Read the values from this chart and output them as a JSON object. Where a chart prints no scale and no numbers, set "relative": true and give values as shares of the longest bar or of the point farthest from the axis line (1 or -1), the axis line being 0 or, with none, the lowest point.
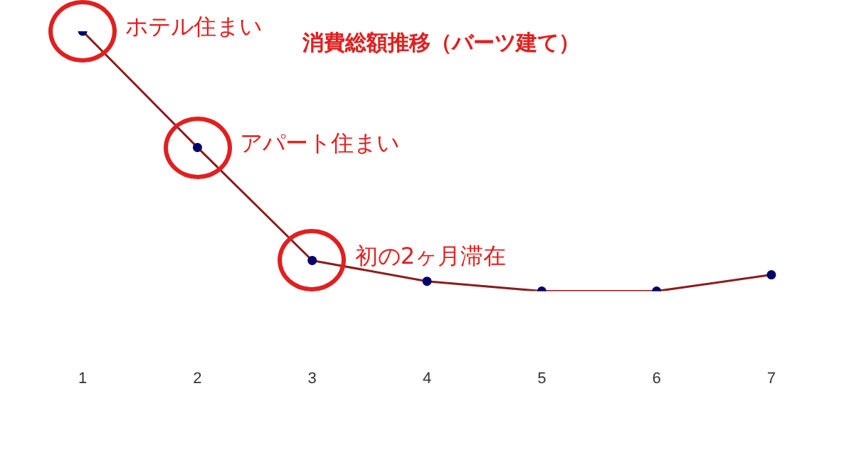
{
  "chart_data": {
    "type": "line",
    "title": "消費総額推移（バーツ建て）",
    "relative": true,
    "categories": [
      "1",
      "2",
      "3",
      "4",
      "5",
      "6",
      "7"
    ],
    "series": [
      {
        "color": "#8b1c1c",
        "colors": [
          "#00006b",
          "#00006b",
          "#00006b",
          "#00006b",
          "#00006b",
          "#00006b",
          "#00006b"
        ],
        "values": [
          1,
          0.553,
          0.118,
          0.038,
          0,
          0,
          0.063
        ]
      }
    ],
    "marker": "circle",
    "grid": false,
    "legend": false,
    "annotations": [
      {
        "text": "ホテル住まい",
        "x": "1",
        "y": 1
      },
      {
        "text": "アパート住まい",
        "x": "2",
        "y": 0.553
      },
      {
        "text": "初の2ヶ月滞在",
        "x": "3",
        "y": 0.118
      }
    ]
  }
}
